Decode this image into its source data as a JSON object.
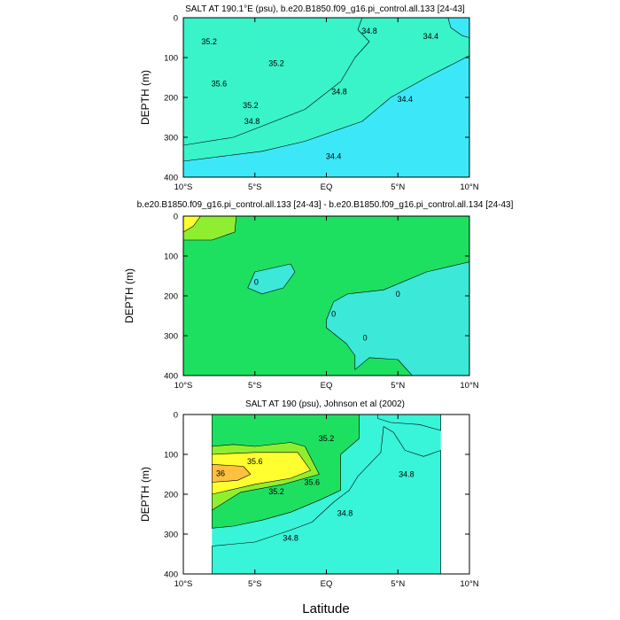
{
  "figure": {
    "xlabel": "Latitude",
    "panels": [
      {
        "title": "SALT AT 190.1°E (psu), b.e20.B1850.f09_g16.pi_control.all.133 [24-43]",
        "ylabel": "DEPTH (m)",
        "xticks": [
          "10°S",
          "5°S",
          "EQ",
          "5°N",
          "10°N"
        ],
        "yticks": [
          "0",
          "100",
          "200",
          "300",
          "400"
        ],
        "contour_labels": [
          {
            "text": "35.2",
            "lat": -8.2,
            "depth": 60
          },
          {
            "text": "35.6",
            "lat": -7.5,
            "depth": 165
          },
          {
            "text": "35.2",
            "lat": -3.5,
            "depth": 115
          },
          {
            "text": "35.2",
            "lat": -5.3,
            "depth": 220
          },
          {
            "text": "34.8",
            "lat": -5.2,
            "depth": 260
          },
          {
            "text": "34.8",
            "lat": 0.9,
            "depth": 185
          },
          {
            "text": "34.8",
            "lat": 3.0,
            "depth": 33
          },
          {
            "text": "34.4",
            "lat": 7.3,
            "depth": 47
          },
          {
            "text": "34.4",
            "lat": 5.5,
            "depth": 205
          },
          {
            "text": "34.4",
            "lat": 0.5,
            "depth": 348
          }
        ]
      },
      {
        "title": "b.e20.B1850.f09_g16.pi_control.all.133 [24-43] - b.e20.B1850.f09_g16.pi_control.all.134 [24-43]",
        "ylabel": "DEPTH (m)",
        "xticks": [
          "10°S",
          "5°S",
          "EQ",
          "5°N",
          "10°N"
        ],
        "yticks": [
          "0",
          "100",
          "200",
          "300",
          "400"
        ],
        "contour_labels": [
          {
            "text": "0",
            "lat": -4.9,
            "depth": 165
          },
          {
            "text": "0",
            "lat": 5.0,
            "depth": 195
          },
          {
            "text": "0",
            "lat": 0.5,
            "depth": 245
          },
          {
            "text": "0",
            "lat": 2.7,
            "depth": 305
          }
        ]
      },
      {
        "title": "SALT AT 190 (psu), Johnson et al (2002)",
        "ylabel": "DEPTH (m)",
        "xticks": [
          "10°S",
          "5°S",
          "EQ",
          "5°N",
          "10°N"
        ],
        "yticks": [
          "0",
          "100",
          "200",
          "300",
          "400"
        ],
        "contour_labels": [
          {
            "text": "35.2",
            "lat": 0.0,
            "depth": 60
          },
          {
            "text": "35.6",
            "lat": -5.0,
            "depth": 118
          },
          {
            "text": "36",
            "lat": -7.4,
            "depth": 148
          },
          {
            "text": "35.6",
            "lat": -1.0,
            "depth": 170
          },
          {
            "text": "35.2",
            "lat": -3.5,
            "depth": 193
          },
          {
            "text": "34.8",
            "lat": 5.6,
            "depth": 150
          },
          {
            "text": "34.8",
            "lat": 1.3,
            "depth": 248
          },
          {
            "text": "34.8",
            "lat": -2.5,
            "depth": 310
          }
        ]
      }
    ]
  },
  "chart_data": [
    {
      "type": "heatmap",
      "title": "SALT AT 190.1°E (psu), b.e20.B1850.f09_g16.pi_control.all.133 [24-43]",
      "xlabel": "Latitude",
      "ylabel": "DEPTH (m)",
      "xlim": [
        -10,
        10
      ],
      "ylim": [
        400,
        0
      ],
      "contour_levels": [
        34.4,
        34.8,
        35.2,
        35.6
      ],
      "colors": {
        "lt34.4": "#3ce8f8",
        "34.4-34.8": "#38f4c8",
        "34.8-35.2": "#1ee060",
        "35.2-35.6": "#90ee30",
        "gt35.6": "#ffff30"
      },
      "regions": [
        {
          "band": "gt35.6",
          "outline": [
            [
              -10,
              145
            ],
            [
              -6,
              148
            ],
            [
              -4.2,
              180
            ],
            [
              -6,
              205
            ],
            [
              -10,
              207
            ]
          ]
        },
        {
          "band": "35.2-35.6",
          "outline": [
            [
              -10,
              100
            ],
            [
              -7.5,
              75
            ],
            [
              -5.5,
              75
            ],
            [
              -4,
              105
            ],
            [
              -3.2,
              165
            ],
            [
              -4.2,
              200
            ],
            [
              -6.5,
              220
            ],
            [
              -10,
              225
            ]
          ]
        },
        {
          "band": "34.8-35.2",
          "outline": [
            [
              -10,
              0
            ],
            [
              -6.8,
              0
            ],
            [
              -6.8,
              15
            ],
            [
              -8.5,
              22
            ],
            [
              -10,
              40
            ]
          ]
        },
        {
          "band": "34.8-35.2",
          "outline": [
            [
              -10,
              40
            ],
            [
              -8.5,
              22
            ],
            [
              -5.5,
              32
            ],
            [
              -4.5,
              75
            ],
            [
              -3.5,
              95
            ],
            [
              -2,
              120
            ],
            [
              -2.5,
              165
            ],
            [
              -4.5,
              215
            ],
            [
              -7,
              245
            ],
            [
              -10,
              250
            ]
          ]
        },
        {
          "band": "34.4-34.8",
          "outline": [
            [
              -10,
              0
            ],
            [
              2.5,
              0
            ],
            [
              2.2,
              30
            ],
            [
              3,
              60
            ],
            [
              2,
              100
            ],
            [
              1,
              160
            ],
            [
              -1.5,
              230
            ],
            [
              -6.5,
              300
            ],
            [
              -10,
              320
            ]
          ]
        },
        {
          "band": "lt34.4",
          "outline": [
            [
              8.5,
              0
            ],
            [
              8.7,
              25
            ],
            [
              9.5,
              45
            ],
            [
              10,
              50
            ],
            [
              10,
              0
            ]
          ]
        },
        {
          "band": "lt34.4",
          "outline": [
            [
              10,
              95
            ],
            [
              7,
              150
            ],
            [
              4.5,
              200
            ],
            [
              2.5,
              260
            ],
            [
              -1.5,
              310
            ],
            [
              -4.5,
              335
            ],
            [
              -10,
              360
            ],
            [
              -10,
              400
            ],
            [
              10,
              400
            ]
          ]
        }
      ]
    },
    {
      "type": "heatmap",
      "title": "b.e20.B1850.f09_g16.pi_control.all.133 [24-43] - b.e20.B1850.f09_g16.pi_control.all.134 [24-43]",
      "xlabel": "Latitude",
      "ylabel": "DEPTH (m)",
      "xlim": [
        -10,
        10
      ],
      "ylim": [
        400,
        0
      ],
      "contour_levels": [
        0
      ],
      "colors": {
        "negative": "#3ce8d8",
        "positive": "#1ee060",
        "high": "#90ee30",
        "highest": "#ffff30"
      },
      "regions": [
        {
          "band": "high",
          "outline": [
            [
              -10,
              0
            ],
            [
              -6.3,
              0
            ],
            [
              -6.4,
              40
            ],
            [
              -8,
              60
            ],
            [
              -10,
              60
            ]
          ]
        },
        {
          "band": "highest",
          "outline": [
            [
              -10,
              0
            ],
            [
              -8.8,
              0
            ],
            [
              -9.3,
              25
            ],
            [
              -10,
              40
            ]
          ]
        },
        {
          "band": "negative",
          "outline": [
            [
              -5,
              140
            ],
            [
              -2.5,
              120
            ],
            [
              -2.2,
              140
            ],
            [
              -3,
              180
            ],
            [
              -4.5,
              195
            ],
            [
              -5.5,
              180
            ]
          ]
        },
        {
          "band": "negative",
          "outline": [
            [
              10,
              115
            ],
            [
              7,
              140
            ],
            [
              4,
              185
            ],
            [
              1.5,
              195
            ],
            [
              0.5,
              215
            ],
            [
              0,
              260
            ],
            [
              0,
              280
            ],
            [
              0.7,
              300
            ],
            [
              1.4,
              320
            ],
            [
              2,
              350
            ],
            [
              2,
              385
            ],
            [
              3,
              355
            ],
            [
              5,
              360
            ],
            [
              6,
              400
            ],
            [
              10,
              400
            ]
          ]
        }
      ]
    },
    {
      "type": "heatmap",
      "title": "SALT AT 190 (psu), Johnson et al (2002)",
      "xlabel": "Latitude",
      "ylabel": "DEPTH (m)",
      "xlim": [
        -10,
        10
      ],
      "ylim": [
        400,
        0
      ],
      "data_lat_range": [
        -8,
        8
      ],
      "contour_levels": [
        34.8,
        35.2,
        35.6,
        36.0
      ],
      "colors": {
        "lt34.8": "#38f4d8",
        "34.8-35.2": "#1ee060",
        "35.2-35.6": "#90ee30",
        "35.6-36.0": "#ffff30",
        "gt36.0": "#ffc040"
      },
      "regions": [
        {
          "band": "34.8-35.2",
          "outline": [
            [
              -8,
              0
            ],
            [
              2.3,
              0
            ],
            [
              2.3,
              60
            ],
            [
              1,
              100
            ],
            [
              1,
              190
            ],
            [
              -0.5,
              215
            ],
            [
              -2.5,
              245
            ],
            [
              -4.5,
              265
            ],
            [
              -6.5,
              280
            ],
            [
              -8,
              285
            ]
          ]
        },
        {
          "band": "35.2-35.6",
          "outline": [
            [
              -8,
              80
            ],
            [
              -6.5,
              75
            ],
            [
              -5,
              80
            ],
            [
              -2.5,
              70
            ],
            [
              -1.5,
              80
            ],
            [
              -0.5,
              150
            ],
            [
              -3,
              175
            ],
            [
              -6,
              195
            ],
            [
              -8,
              240
            ]
          ]
        },
        {
          "band": "35.6-36.0",
          "outline": [
            [
              -8,
              100
            ],
            [
              -5,
              95
            ],
            [
              -2,
              95
            ],
            [
              -1.1,
              140
            ],
            [
              -2.5,
              160
            ],
            [
              -5,
              175
            ],
            [
              -8,
              200
            ]
          ]
        },
        {
          "band": "gt36.0",
          "outline": [
            [
              -8,
              125
            ],
            [
              -5.8,
              130
            ],
            [
              -5.3,
              150
            ],
            [
              -6.2,
              165
            ],
            [
              -8,
              170
            ]
          ]
        },
        {
          "band": "lt34.8",
          "outline": [
            [
              3.6,
              0
            ],
            [
              8,
              0
            ],
            [
              8,
              40
            ],
            [
              6.5,
              25
            ],
            [
              4.5,
              20
            ],
            [
              3.6,
              10
            ]
          ]
        },
        {
          "band": "lt34.8",
          "outline": [
            [
              8,
              90
            ],
            [
              6.8,
              105
            ],
            [
              5.5,
              90
            ],
            [
              4.7,
              45
            ],
            [
              4,
              30
            ],
            [
              3.8,
              95
            ],
            [
              2.2,
              155
            ],
            [
              1.6,
              190
            ],
            [
              0.5,
              220
            ],
            [
              -1,
              270
            ],
            [
              -2.5,
              290
            ],
            [
              -5,
              320
            ],
            [
              -8,
              330
            ],
            [
              -8,
              400
            ],
            [
              8,
              400
            ]
          ]
        }
      ]
    }
  ]
}
